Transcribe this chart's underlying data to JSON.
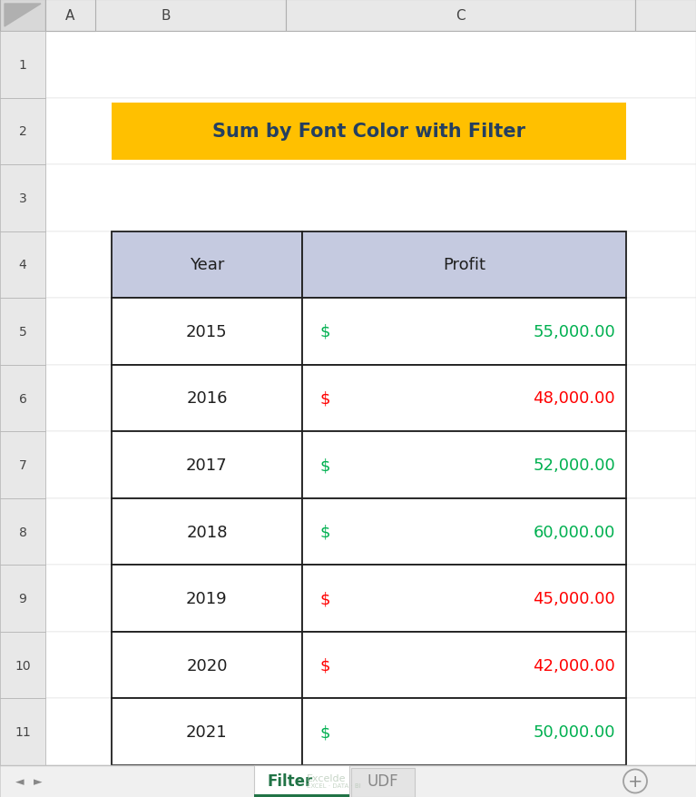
{
  "title": "Sum by Font Color with Filter",
  "title_bg": "#FFC000",
  "title_text_color": "#243F60",
  "title_blue": "#4472C4",
  "header_bg": "#C5CAE0",
  "header_text_color": "#1F1F1F",
  "years": [
    2015,
    2016,
    2017,
    2018,
    2019,
    2020,
    2021
  ],
  "profits": [
    "55,000.00",
    "48,000.00",
    "52,000.00",
    "60,000.00",
    "45,000.00",
    "42,000.00",
    "50,000.00"
  ],
  "profit_colors": [
    "#00B050",
    "#FF0000",
    "#00B050",
    "#00B050",
    "#FF0000",
    "#FF0000",
    "#00B050"
  ],
  "bg_color": "#F2F2F2",
  "white": "#FFFFFF",
  "border_color": "#1F1F1F",
  "col_header_bg": "#E8E8E8",
  "col_header_border": "#B0B0B0",
  "row_header_bg": "#E8E8E8",
  "tab_active": "Filter",
  "tab_inactive": "UDF",
  "tab_active_color": "#217346",
  "tab_bar_bg": "#F0F0F0",
  "fig_width": 7.67,
  "fig_height": 8.79,
  "dpi": 100
}
